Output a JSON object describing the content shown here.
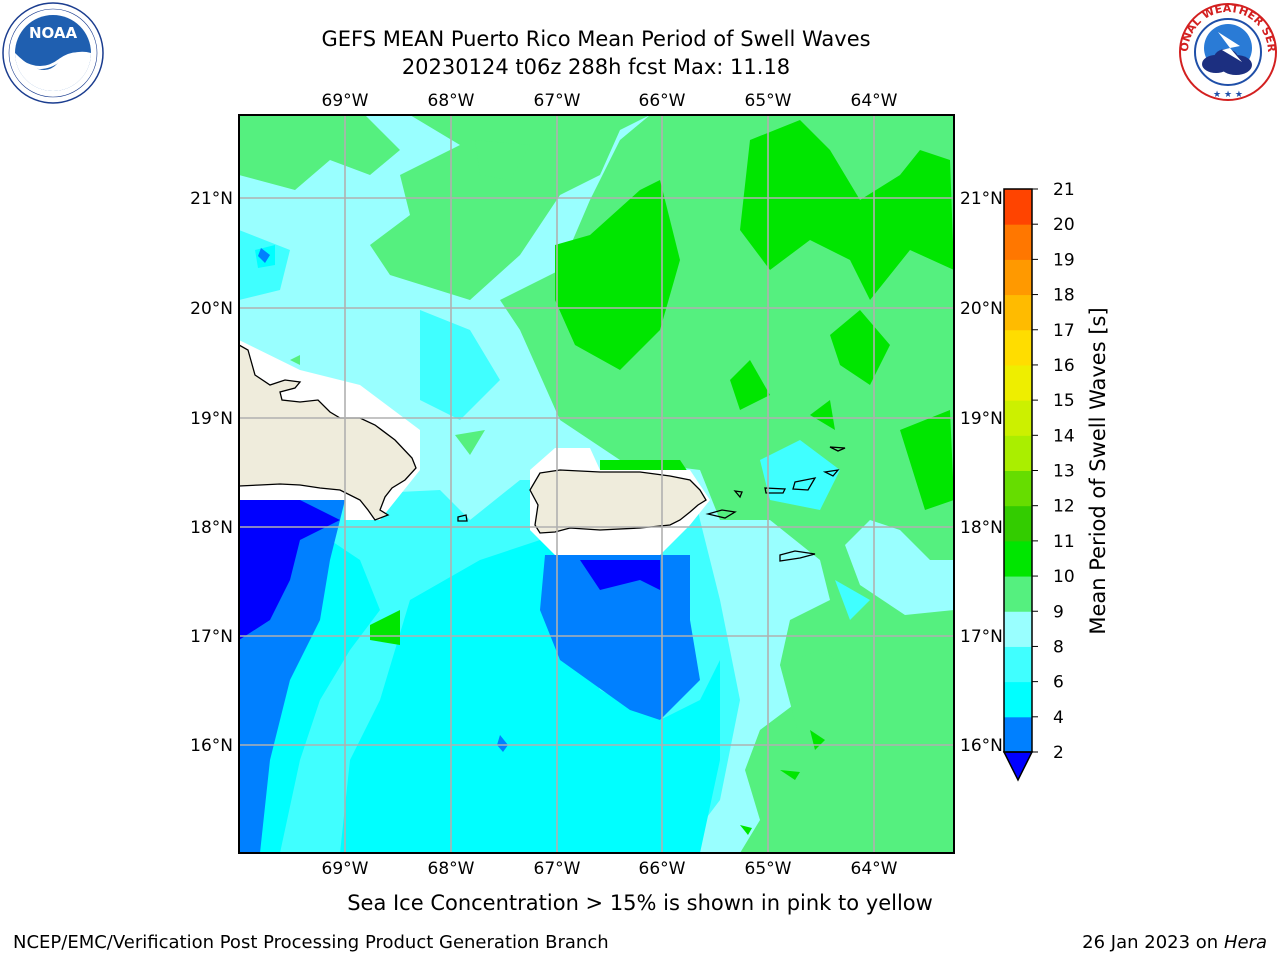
{
  "header": {
    "title_line1": "GEFS MEAN Puerto Rico Mean Period of Swell Waves",
    "title_line2": "20230124 t06z 288h fcst   Max: 11.18"
  },
  "logos": {
    "noaa": {
      "text": "NOAA",
      "ring": "NATIONAL OCEANIC AND ATMOSPHERIC ADMINISTRATION • U.S. DEPARTMENT OF COMMERCE"
    },
    "nws": {
      "ring": "NATIONAL WEATHER SERVICE"
    }
  },
  "map": {
    "lon_labels": [
      "69°W",
      "68°W",
      "67°W",
      "66°W",
      "65°W",
      "64°W"
    ],
    "lat_labels": [
      "21°N",
      "20°N",
      "19°N",
      "18°N",
      "17°N",
      "16°N"
    ],
    "colors": {
      "c2_4": "#0080ff",
      "c4_6": "#00ffff",
      "c6_8": "#40ffff",
      "c8_9": "#99ffff",
      "c9_10": "#55f07f",
      "c10_11": "#00e600",
      "land": "#efecdc",
      "low": "#0000ff"
    }
  },
  "colorbar": {
    "label": "Mean Period of Swell Waves [s]",
    "ticks": [
      "2",
      "4",
      "6",
      "8",
      "9",
      "10",
      "11",
      "12",
      "13",
      "14",
      "15",
      "16",
      "17",
      "18",
      "19",
      "20",
      "21"
    ],
    "colors": [
      "#0080ff",
      "#00ffff",
      "#40ffff",
      "#99ffff",
      "#55f07f",
      "#00e600",
      "#33cc00",
      "#66dd00",
      "#aaee00",
      "#ccf000",
      "#eeee00",
      "#ffdd00",
      "#ffbb00",
      "#ff9900",
      "#ff7700",
      "#ff4400",
      "#ff0000"
    ],
    "under_color": "#0000ff"
  },
  "footer": {
    "note": "Sea Ice Concentration > 15% is shown in pink to yellow",
    "credit": "NCEP/EMC/Verification Post Processing Product Generation Branch",
    "date": "26 Jan 2023 on",
    "date_host": "Hera"
  }
}
